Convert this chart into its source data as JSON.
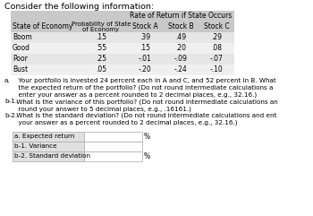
{
  "title": "Consider the following information:",
  "rate_of_return_header": "Rate of Return if State Occurs",
  "col_headers": [
    "State of Economy",
    "Probability of State\nof Economy",
    "Stock A",
    "Stock B",
    "Stock C"
  ],
  "rows": [
    [
      "Boom",
      ".15",
      ".39",
      ".49",
      ".29"
    ],
    [
      "Good",
      ".55",
      ".15",
      ".20",
      ".08"
    ],
    [
      "Poor",
      ".25",
      "-.01",
      "-.09",
      "-.07"
    ],
    [
      "Bust",
      ".05",
      "-.20",
      "-.24",
      "-.10"
    ]
  ],
  "question_lines": [
    [
      "a.",
      "  Your portfolio is invested 24 percent each in A and C, and 52 percent in B. What"
    ],
    [
      "",
      "  the expected return of the portfolio? (Do not round intermediate calculations a"
    ],
    [
      "",
      "  enter your answer as a percent rounded to 2 decimal places, e.g., 32.16.)"
    ],
    [
      "b-1.",
      " What is the variance of this portfolio? (Do not round intermediate calculations an"
    ],
    [
      "",
      "  round your answer to 5 decimal places, e.g., .16161.)"
    ],
    [
      "b-2.",
      " What is the standard deviation? (Do not round intermediate calculations and ent"
    ],
    [
      "",
      "  your answer as a percent rounded to 2 decimal places, e.g., 32.16.)"
    ]
  ],
  "answer_rows": [
    {
      "label": "a. Expected return",
      "unit": "%"
    },
    {
      "label": "b-1. Variance",
      "unit": ""
    },
    {
      "label": "b-2. Standard deviation",
      "unit": "%"
    }
  ],
  "header_bg": "#c9c9c9",
  "row_bg_even": "#e6e6e6",
  "row_bg_odd": "#f0f0f0",
  "ans_label_bg": "#e0e0e0",
  "white": "#ffffff",
  "black": "#000000",
  "gray": "#888888"
}
